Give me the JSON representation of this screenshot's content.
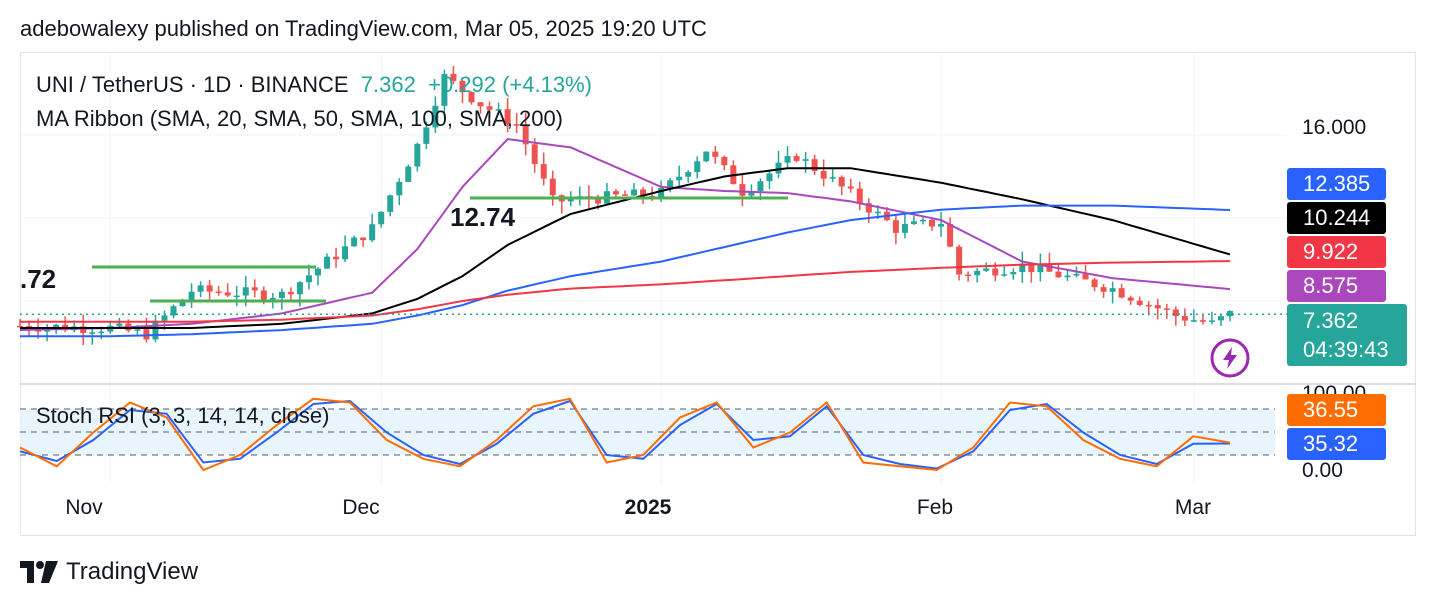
{
  "header": {
    "text": "adebowalexy published on TradingView.com, Mar 05, 2025 19:20 UTC"
  },
  "legend": {
    "symbol": "UNI / TetherUS · 1D · BINANCE",
    "price": "7.362",
    "change": "+0.292 (+4.13%)",
    "ma": "MA Ribbon (SMA, 20, SMA, 50, SMA, 100, SMA, 200)",
    "stoch": "Stoch RSI (3, 3, 14, 14, close)"
  },
  "annotations": {
    "level_left": ".72",
    "level_mid": "12.74"
  },
  "price_labels": [
    {
      "value": "12.385",
      "color": "#2962ff"
    },
    {
      "value": "10.244",
      "color": "#000000"
    },
    {
      "value": "9.922",
      "color": "#f23645"
    },
    {
      "value": "8.575",
      "color": "#ab47bc"
    }
  ],
  "last_price": {
    "value": "7.362",
    "countdown": "04:39:43",
    "color": "#26a69a"
  },
  "y_axis": {
    "main_tick": "16.000",
    "stoch_top": "100.00",
    "stoch_bottom": "0.00"
  },
  "stoch_labels": {
    "k": "36.55",
    "d": "35.32",
    "k_color": "#ff6d00",
    "d_color": "#2962ff"
  },
  "x_axis": [
    "Nov",
    "Dec",
    "2025",
    "Feb",
    "Mar"
  ],
  "footer": {
    "brand": "TradingView"
  },
  "chart_data": {
    "type": "line",
    "symbol": "UNI / TetherUS",
    "interval": "1D",
    "exchange": "BINANCE",
    "last": 7.362,
    "change": 0.292,
    "change_pct": 4.13,
    "series": [
      {
        "name": "SMA 20",
        "color": "#ab47bc",
        "x": [
          "Oct 22",
          "Nov 01",
          "Nov 10",
          "Nov 20",
          "Nov 30",
          "Dec 05",
          "Dec 10",
          "Dec 15",
          "Dec 22",
          "Jan 01",
          "Jan 08",
          "Jan 15",
          "Jan 22",
          "Feb 01",
          "Feb 10",
          "Feb 20",
          "Mar 05"
        ],
        "values": [
          6.6,
          6.7,
          6.9,
          7.4,
          8.4,
          10.5,
          13.5,
          15.8,
          15.4,
          13.5,
          13.3,
          13.2,
          12.8,
          11.9,
          9.9,
          9.1,
          8.575
        ]
      },
      {
        "name": "SMA 50",
        "color": "#000000",
        "x": [
          "Oct 22",
          "Nov 01",
          "Nov 10",
          "Nov 20",
          "Nov 30",
          "Dec 05",
          "Dec 10",
          "Dec 15",
          "Dec 22",
          "Jan 01",
          "Jan 08",
          "Jan 15",
          "Jan 22",
          "Feb 01",
          "Feb 10",
          "Feb 20",
          "Mar 05"
        ],
        "values": [
          6.7,
          6.7,
          6.7,
          6.9,
          7.4,
          8.1,
          9.2,
          10.7,
          12.2,
          13.3,
          14.0,
          14.4,
          14.4,
          13.7,
          12.9,
          11.9,
          10.244
        ]
      },
      {
        "name": "SMA 100",
        "color": "#2962ff",
        "x": [
          "Oct 22",
          "Nov 01",
          "Nov 10",
          "Nov 20",
          "Nov 30",
          "Dec 05",
          "Dec 10",
          "Dec 15",
          "Dec 22",
          "Jan 01",
          "Jan 08",
          "Jan 15",
          "Jan 22",
          "Feb 01",
          "Feb 10",
          "Feb 20",
          "Mar 05"
        ],
        "values": [
          6.3,
          6.3,
          6.4,
          6.6,
          6.9,
          7.3,
          7.8,
          8.5,
          9.2,
          9.9,
          10.6,
          11.3,
          11.9,
          12.4,
          12.6,
          12.6,
          12.385
        ]
      },
      {
        "name": "SMA 200",
        "color": "#f23645",
        "x": [
          "Oct 22",
          "Nov 01",
          "Nov 10",
          "Nov 20",
          "Nov 30",
          "Dec 05",
          "Dec 10",
          "Dec 15",
          "Dec 22",
          "Jan 01",
          "Jan 08",
          "Jan 15",
          "Jan 22",
          "Feb 01",
          "Feb 10",
          "Feb 20",
          "Mar 05"
        ],
        "values": [
          7.0,
          7.0,
          7.0,
          7.1,
          7.3,
          7.6,
          8.0,
          8.3,
          8.6,
          8.8,
          9.0,
          9.2,
          9.4,
          9.6,
          9.75,
          9.85,
          9.922
        ]
      },
      {
        "name": "Close",
        "color": "#26a69a",
        "x": [
          "Oct 22",
          "Nov 01",
          "Nov 05",
          "Nov 10",
          "Nov 20",
          "Nov 30",
          "Dec 05",
          "Dec 08",
          "Dec 12",
          "Dec 16",
          "Dec 20",
          "Jan 01",
          "Jan 06",
          "Jan 10",
          "Jan 16",
          "Jan 20",
          "Jan 27",
          "Feb 01",
          "Feb 03",
          "Feb 10",
          "Feb 20",
          "Feb 27",
          "Mar 03",
          "Mar 05"
        ],
        "values": [
          6.8,
          6.7,
          6.4,
          8.5,
          8.3,
          11.5,
          15.5,
          18.8,
          17.5,
          16.5,
          12.8,
          13.2,
          15.3,
          13.3,
          15.0,
          13.8,
          11.5,
          11.8,
          9.3,
          9.7,
          8.6,
          7.3,
          6.9,
          7.362
        ]
      }
    ],
    "stoch_rsi": {
      "k": 36.55,
      "d": 35.32,
      "range": [
        0,
        100
      ],
      "bands": [
        20,
        50,
        80
      ],
      "k_values": [
        30,
        5,
        50,
        90,
        70,
        0,
        20,
        60,
        95,
        90,
        40,
        15,
        5,
        40,
        85,
        95,
        10,
        20,
        70,
        90,
        30,
        50,
        90,
        10,
        5,
        0,
        30,
        90,
        85,
        40,
        15,
        5,
        45,
        36.55
      ],
      "d_values": [
        25,
        12,
        40,
        80,
        75,
        10,
        15,
        50,
        88,
        92,
        50,
        20,
        8,
        35,
        75,
        92,
        20,
        15,
        60,
        88,
        40,
        45,
        85,
        20,
        8,
        2,
        25,
        80,
        88,
        50,
        20,
        8,
        35,
        35.32
      ]
    },
    "ylim": [
      4,
      20
    ],
    "y_ticks": [
      16
    ],
    "log_scale": false,
    "grid": true
  }
}
